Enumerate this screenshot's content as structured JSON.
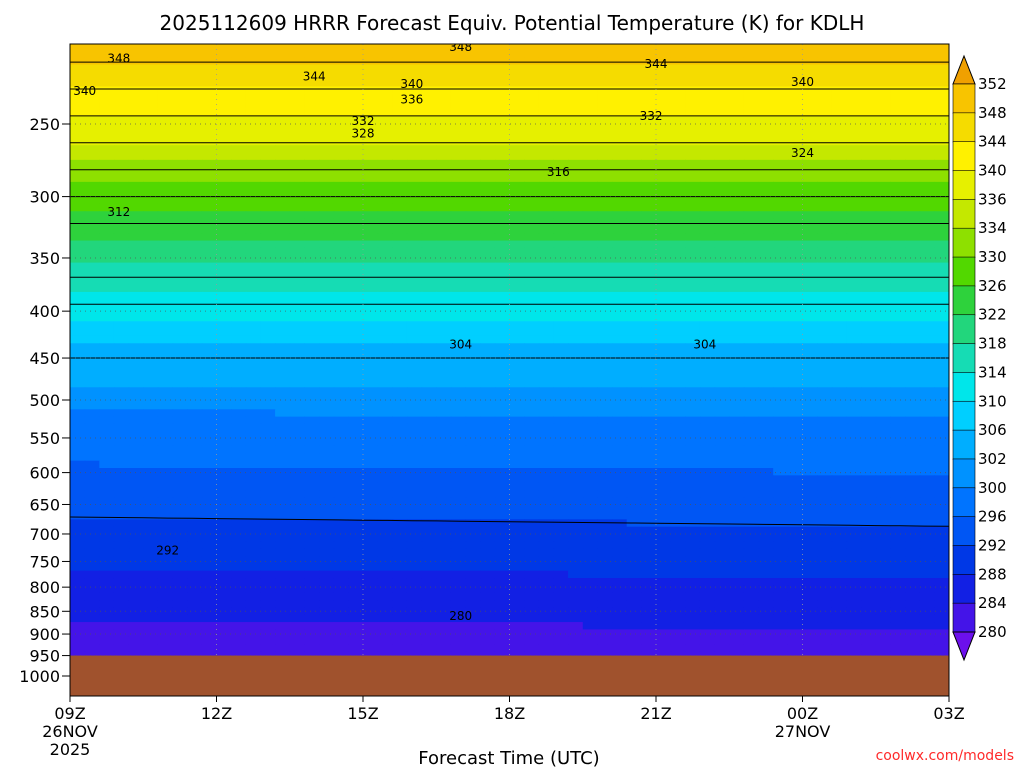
{
  "chart_data": {
    "type": "heatmap",
    "title": "2025112609 HRRR Forecast Equiv. Potential Temperature (K) for KDLH",
    "xlabel": "Forecast Time (UTC)",
    "ylabel": "",
    "credit": "coolwx.com/models",
    "x_ticks": [
      {
        "label": "09Z",
        "sub": [
          "26NOV",
          "2025"
        ],
        "hour": 0
      },
      {
        "label": "12Z",
        "sub": [],
        "hour": 3
      },
      {
        "label": "15Z",
        "sub": [],
        "hour": 6
      },
      {
        "label": "18Z",
        "sub": [],
        "hour": 9
      },
      {
        "label": "21Z",
        "sub": [],
        "hour": 12
      },
      {
        "label": "00Z",
        "sub": [
          "27NOV"
        ],
        "hour": 15
      },
      {
        "label": "03Z",
        "sub": [],
        "hour": 18
      }
    ],
    "xlim": [
      0,
      18
    ],
    "y_ticks": [
      250,
      300,
      350,
      400,
      450,
      500,
      550,
      600,
      650,
      700,
      750,
      800,
      850,
      900,
      950,
      1000
    ],
    "ylim": [
      200,
      1050
    ],
    "y_scale": "log",
    "y_inverted": true,
    "grid": true,
    "colorbar": {
      "labels": [
        352,
        348,
        344,
        340,
        336,
        334,
        330,
        326,
        322,
        318,
        314,
        310,
        306,
        302,
        300,
        296,
        292,
        288,
        284,
        280
      ],
      "colors": [
        "#f0a000",
        "#f8c400",
        "#f5dc00",
        "#fff100",
        "#e6f000",
        "#c4e800",
        "#8ee000",
        "#52d800",
        "#2ed23c",
        "#22d67c",
        "#16dcb4",
        "#00e6ea",
        "#00cfff",
        "#00aeff",
        "#0092ff",
        "#0074ff",
        "#0056f4",
        "#0038e6",
        "#1220e4",
        "#4414e8",
        "#6c10ec"
      ],
      "placement": "right"
    },
    "series": [
      {
        "values": [
          348,
          348,
          348,
          348,
          348,
          348,
          348
        ]
      },
      {
        "values": [
          344,
          344,
          344,
          344,
          344,
          344,
          344
        ]
      },
      {
        "values": [
          340,
          340,
          340,
          340,
          340,
          340,
          340
        ]
      },
      {
        "values": [
          336,
          336,
          336,
          336,
          336,
          336,
          336
        ]
      },
      {
        "values": [
          332,
          332,
          332,
          332,
          332,
          332,
          332
        ]
      },
      {
        "values": [
          328,
          328,
          328,
          328,
          328,
          328,
          328
        ]
      },
      {
        "values": [
          324,
          324,
          324,
          324,
          324,
          324,
          324
        ]
      },
      {
        "values": [
          316,
          316,
          316,
          316,
          316,
          316,
          316
        ]
      },
      {
        "values": [
          312,
          312,
          312,
          312,
          312,
          312,
          312
        ]
      },
      {
        "values": [
          304,
          304,
          304,
          304,
          304,
          304,
          304
        ]
      },
      {
        "values": [
          292,
          292,
          292,
          292,
          292,
          292,
          292
        ]
      },
      {
        "values": [
          280,
          280,
          280,
          280,
          280,
          280,
          280
        ]
      }
    ],
    "contour_labels": [
      {
        "text": "348",
        "hour": 1.0,
        "p": 212
      },
      {
        "text": "348",
        "hour": 8.0,
        "p": 206
      },
      {
        "text": "344",
        "hour": 5.0,
        "p": 222
      },
      {
        "text": "344",
        "hour": 12.0,
        "p": 215
      },
      {
        "text": "340",
        "hour": 0.3,
        "p": 230
      },
      {
        "text": "340",
        "hour": 7.0,
        "p": 226
      },
      {
        "text": "340",
        "hour": 15.0,
        "p": 225
      },
      {
        "text": "336",
        "hour": 7.0,
        "p": 235
      },
      {
        "text": "332",
        "hour": 6.0,
        "p": 248
      },
      {
        "text": "332",
        "hour": 11.9,
        "p": 245
      },
      {
        "text": "328",
        "hour": 6.0,
        "p": 256
      },
      {
        "text": "324",
        "hour": 15.0,
        "p": 269
      },
      {
        "text": "316",
        "hour": 10.0,
        "p": 282
      },
      {
        "text": "312",
        "hour": 1.0,
        "p": 312
      },
      {
        "text": "304",
        "hour": 8.0,
        "p": 435
      },
      {
        "text": "304",
        "hour": 13.0,
        "p": 435
      },
      {
        "text": "292",
        "hour": 2.0,
        "p": 730
      },
      {
        "text": "280",
        "hour": 8.0,
        "p": 860
      }
    ],
    "ground": {
      "p_top": 950,
      "color": "#a0522d"
    }
  }
}
